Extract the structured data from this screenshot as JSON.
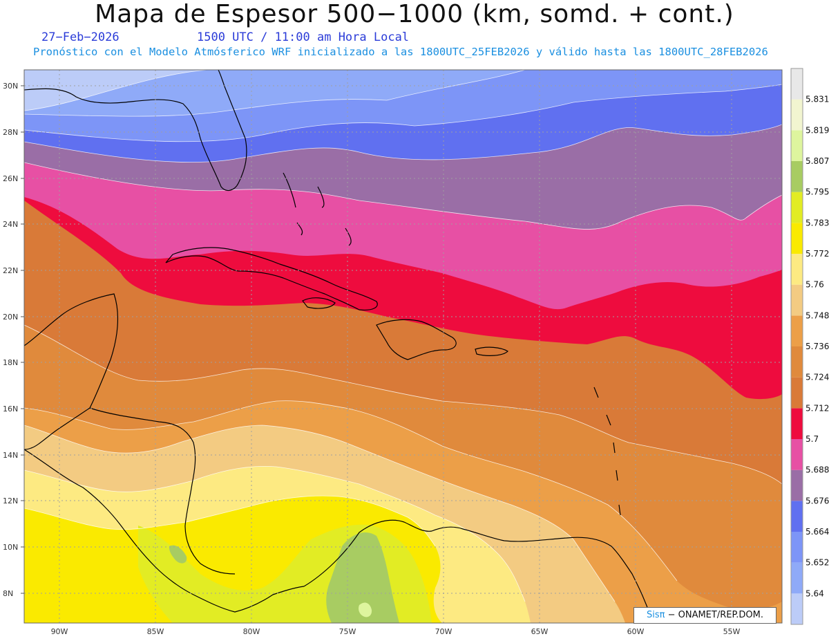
{
  "header": {
    "title": "Mapa de Espesor 500−1000 (km, somd. + cont.)",
    "date": "27−Feb−2026",
    "time": "1500 UTC / 11:00 am Hora Local",
    "forecast": "Pronóstico con el Modelo Atmósferico WRF inicializado a las 1800UTC_25FEB2026 y válido hasta las  1800UTC_28FEB2026"
  },
  "map": {
    "region": "Caribbean",
    "lat_labels": [
      "30N",
      "28N",
      "26N",
      "24N",
      "22N",
      "20N",
      "18N",
      "16N",
      "14N",
      "12N",
      "10N",
      "8N"
    ],
    "lon_labels": [
      "90W",
      "85W",
      "80W",
      "75W",
      "70W",
      "65W",
      "60W",
      "55W"
    ],
    "bands": [
      {
        "color": "#bcccf8",
        "label": "5.64"
      },
      {
        "color": "#8faaf8",
        "label": "5.652"
      },
      {
        "color": "#7d95f7",
        "label": "5.664"
      },
      {
        "color": "#6070f0",
        "label": "5.676"
      },
      {
        "color": "#9a6ea6",
        "label": "5.688"
      },
      {
        "color": "#e750a4",
        "label": "5.7"
      },
      {
        "color": "#ee0c3e",
        "label": "5.712"
      },
      {
        "color": "#d97a38",
        "label": "5.724"
      },
      {
        "color": "#e08a3c",
        "label": "5.736"
      },
      {
        "color": "#ec9f48",
        "label": "5.748"
      },
      {
        "color": "#f3cb82",
        "label": "5.76"
      },
      {
        "color": "#fdea82",
        "label": "5.772"
      },
      {
        "color": "#faea00",
        "label": "5.783"
      },
      {
        "color": "#e2ec24",
        "label": "5.795"
      },
      {
        "color": "#a8cc62",
        "label": "5.807"
      },
      {
        "color": "#def59e",
        "label": "5.819"
      },
      {
        "color": "#f2f5d0",
        "label": "5.831"
      },
      {
        "color": "#e8e8e8",
        "label": ""
      }
    ]
  },
  "colorbar_labels": [
    "5.64",
    "5.652",
    "5.664",
    "5.676",
    "5.688",
    "5.7",
    "5.712",
    "5.724",
    "5.736",
    "5.748",
    "5.76",
    "5.772",
    "5.783",
    "5.795",
    "5.807",
    "5.819",
    "5.831"
  ],
  "credit": {
    "sis": "Sisπ",
    "org": "− ONAMET/REP.DOM."
  }
}
